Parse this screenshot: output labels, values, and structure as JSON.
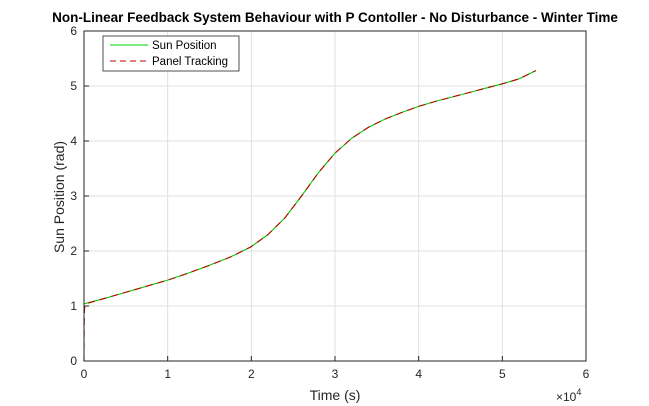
{
  "chart_data": {
    "type": "line",
    "title": "Non-Linear Feedback System Behaviour with P Contoller - No Disturbance - Winter Time",
    "xlabel": "Time (s)",
    "ylabel": "Sun Position (rad)",
    "x_exponent_label": "×10",
    "x_exponent_power": "4",
    "xlim": [
      0,
      6
    ],
    "ylim": [
      0,
      6
    ],
    "xticks": [
      "0",
      "1",
      "2",
      "3",
      "4",
      "5",
      "6"
    ],
    "yticks": [
      "0",
      "1",
      "2",
      "3",
      "4",
      "5",
      "6"
    ],
    "grid": true,
    "legend_position": "top-left",
    "series": [
      {
        "name": "Sun Position",
        "color": "#00d000",
        "style": "solid",
        "x": [
          0,
          0.25,
          0.5,
          0.75,
          1.0,
          1.25,
          1.5,
          1.75,
          2.0,
          2.2,
          2.4,
          2.6,
          2.8,
          3.0,
          3.2,
          3.4,
          3.6,
          3.8,
          4.0,
          4.2,
          4.4,
          4.6,
          4.8,
          5.0,
          5.2,
          5.4
        ],
        "y": [
          1.04,
          1.14,
          1.25,
          1.36,
          1.47,
          1.6,
          1.74,
          1.89,
          2.08,
          2.3,
          2.6,
          3.0,
          3.42,
          3.78,
          4.05,
          4.25,
          4.4,
          4.52,
          4.63,
          4.72,
          4.8,
          4.88,
          4.96,
          5.04,
          5.13,
          5.28
        ]
      },
      {
        "name": "Panel Tracking",
        "color": "#c00000",
        "style": "dashed",
        "x": [
          0,
          0.001,
          0.003,
          0.006,
          0.01,
          0.02,
          0.25,
          0.5,
          0.75,
          1.0,
          1.25,
          1.5,
          1.75,
          2.0,
          2.2,
          2.4,
          2.6,
          2.8,
          3.0,
          3.2,
          3.4,
          3.6,
          3.8,
          4.0,
          4.2,
          4.4,
          4.6,
          4.8,
          5.0,
          5.2,
          5.4
        ],
        "y": [
          0,
          0.35,
          0.7,
          0.93,
          1.01,
          1.04,
          1.14,
          1.25,
          1.36,
          1.47,
          1.6,
          1.74,
          1.89,
          2.08,
          2.3,
          2.6,
          3.0,
          3.42,
          3.78,
          4.05,
          4.25,
          4.4,
          4.52,
          4.63,
          4.72,
          4.8,
          4.88,
          4.96,
          5.04,
          5.13,
          5.28
        ]
      }
    ]
  }
}
